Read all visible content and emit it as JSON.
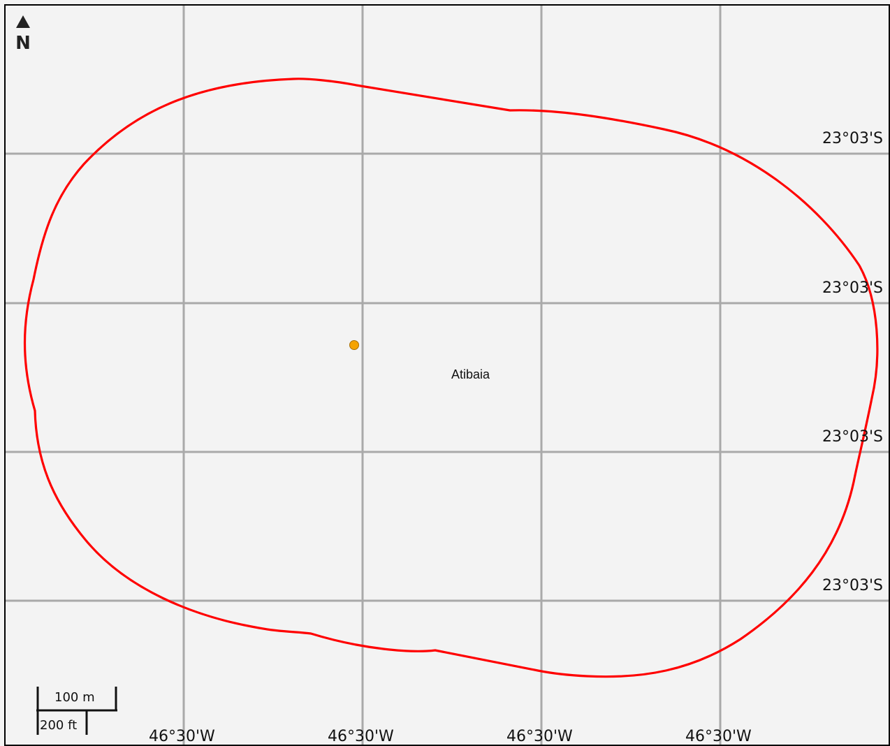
{
  "map": {
    "background_color": "#f3f3f3",
    "frame_color": "#000000",
    "grid_color": "#a9a9a9",
    "north_arrow": {
      "icon": "north-arrow-icon",
      "label": "N"
    },
    "latitude_labels": [
      "23°03'S",
      "23°03'S",
      "23°03'S",
      "23°03'S"
    ],
    "longitude_labels": [
      "46°30'W",
      "46°30'W",
      "46°30'W",
      "46°30'W"
    ],
    "boundary": {
      "color": "#ff0000"
    },
    "place": {
      "name": "Atibaia",
      "marker_color": "#f5a300",
      "marker_icon": "location-dot-icon"
    },
    "scale_bar": {
      "metric_label": "100 m",
      "imperial_label": "200 ft"
    }
  }
}
